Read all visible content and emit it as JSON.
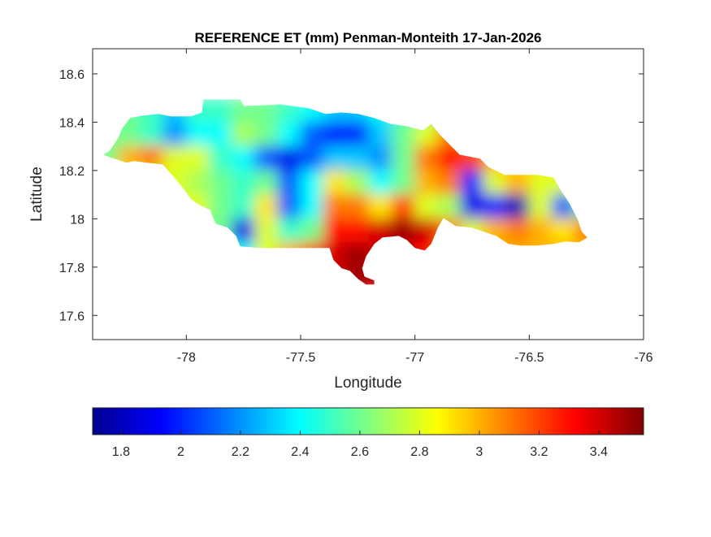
{
  "chart_data": {
    "type": "heatmap",
    "title": "REFERENCE ET (mm) Penman-Monteith 17-Jan-2026",
    "xlabel": "Longitude",
    "ylabel": "Latitude",
    "xlim": [
      -78.41,
      -76.0
    ],
    "ylim": [
      17.5,
      18.704
    ],
    "xticks": [
      -78,
      -77.5,
      -77,
      -76.5,
      -76
    ],
    "xtick_labels": [
      "-78",
      "-77.5",
      "-77",
      "-76.5",
      "-76"
    ],
    "yticks": [
      17.6,
      17.8,
      18,
      18.2,
      18.4,
      18.6
    ],
    "ytick_labels": [
      "17.6",
      "17.8",
      "18",
      "18.2",
      "18.4",
      "18.6"
    ],
    "grid": false,
    "colormap": "jet",
    "clim": [
      1.705,
      3.55
    ],
    "colorbar": {
      "location": "bottom",
      "ticks": [
        1.8,
        2,
        2.2,
        2.4,
        2.6,
        2.8,
        3,
        3.2,
        3.4
      ],
      "tick_labels": [
        "1.8",
        "2",
        "2.2",
        "2.4",
        "2.6",
        "2.8",
        "3",
        "3.2",
        "3.4"
      ]
    },
    "grid_lon": [
      -78.35,
      -78.25,
      -78.15,
      -78.05,
      -77.95,
      -77.85,
      -77.75,
      -77.65,
      -77.55,
      -77.45,
      -77.35,
      -77.25,
      -77.15,
      -77.05,
      -76.95,
      -76.85,
      -76.75,
      -76.65,
      -76.55,
      -76.45,
      -76.35,
      -76.25
    ],
    "grid_lat": [
      18.45,
      18.35,
      18.25,
      18.15,
      18.05,
      17.95,
      17.85,
      17.75
    ],
    "values": [
      [
        2.6,
        2.6,
        2.5,
        2.3,
        2.5,
        2.5,
        2.6,
        2.6,
        2.5,
        2.4,
        2.3,
        2.3,
        2.4,
        2.5,
        2.6,
        2.7,
        2.8,
        2.8,
        2.8,
        2.8,
        2.8,
        2.8
      ],
      [
        2.6,
        2.6,
        2.5,
        2.2,
        2.4,
        2.4,
        2.7,
        2.6,
        2.4,
        2.1,
        1.95,
        2.0,
        2.3,
        2.6,
        2.8,
        3.1,
        3.1,
        3.0,
        2.9,
        2.8,
        2.8,
        2.8
      ],
      [
        2.6,
        3.0,
        3.1,
        2.8,
        2.8,
        2.5,
        2.4,
        2.1,
        1.9,
        2.1,
        2.3,
        2.3,
        2.2,
        2.6,
        3.1,
        3.3,
        3.2,
        3.0,
        2.9,
        2.9,
        2.9,
        2.9
      ],
      [
        2.8,
        2.8,
        2.8,
        2.8,
        2.7,
        2.6,
        2.5,
        2.6,
        2.1,
        2.4,
        2.9,
        2.7,
        2.4,
        2.6,
        3.0,
        3.1,
        2.0,
        2.8,
        3.0,
        2.8,
        2.8,
        2.8
      ],
      [
        2.8,
        2.8,
        2.8,
        2.8,
        2.8,
        2.6,
        2.5,
        2.9,
        2.1,
        2.4,
        3.1,
        3.1,
        2.9,
        3.2,
        2.8,
        2.7,
        1.9,
        2.0,
        1.8,
        2.8,
        2.1,
        2.6
      ],
      [
        2.6,
        2.6,
        2.6,
        2.6,
        2.6,
        2.6,
        1.9,
        2.8,
        2.5,
        2.6,
        3.3,
        3.3,
        3.4,
        3.5,
        3.4,
        3.1,
        2.8,
        3.0,
        3.1,
        3.0,
        2.9,
        3.1
      ],
      [
        2.6,
        2.6,
        2.6,
        2.6,
        2.6,
        2.6,
        2.4,
        2.8,
        3.0,
        3.2,
        3.4,
        3.5,
        3.4,
        3.4,
        3.3,
        3.1,
        3.0,
        3.0,
        3.0,
        3.0,
        3.0,
        3.0
      ],
      [
        2.8,
        2.8,
        2.8,
        2.8,
        2.8,
        2.8,
        2.8,
        3.0,
        3.2,
        3.3,
        3.4,
        3.5,
        3.4,
        3.4,
        3.3,
        3.1,
        3.0,
        3.0,
        3.0,
        3.0,
        3.0,
        3.0
      ]
    ],
    "boundary_lonlat": [
      [
        -78.363,
        18.265
      ],
      [
        -78.335,
        18.282
      ],
      [
        -78.299,
        18.333
      ],
      [
        -78.281,
        18.373
      ],
      [
        -78.246,
        18.417
      ],
      [
        -78.192,
        18.427
      ],
      [
        -78.121,
        18.434
      ],
      [
        -78.068,
        18.424
      ],
      [
        -77.979,
        18.424
      ],
      [
        -77.932,
        18.44
      ],
      [
        -77.925,
        18.494
      ],
      [
        -77.765,
        18.494
      ],
      [
        -77.747,
        18.467
      ],
      [
        -77.587,
        18.474
      ],
      [
        -77.463,
        18.457
      ],
      [
        -77.391,
        18.434
      ],
      [
        -77.32,
        18.44
      ],
      [
        -77.249,
        18.434
      ],
      [
        -77.178,
        18.417
      ],
      [
        -77.107,
        18.393
      ],
      [
        -77.036,
        18.383
      ],
      [
        -76.964,
        18.366
      ],
      [
        -76.929,
        18.393
      ],
      [
        -76.893,
        18.35
      ],
      [
        -76.84,
        18.299
      ],
      [
        -76.804,
        18.265
      ],
      [
        -76.715,
        18.249
      ],
      [
        -76.68,
        18.215
      ],
      [
        -76.609,
        18.182
      ],
      [
        -76.466,
        18.182
      ],
      [
        -76.395,
        18.171
      ],
      [
        -76.359,
        18.114
      ],
      [
        -76.324,
        18.064
      ],
      [
        -76.288,
        17.997
      ],
      [
        -76.27,
        17.946
      ],
      [
        -76.246,
        17.923
      ],
      [
        -76.281,
        17.903
      ],
      [
        -76.342,
        17.906
      ],
      [
        -76.395,
        17.896
      ],
      [
        -76.466,
        17.889
      ],
      [
        -76.537,
        17.889
      ],
      [
        -76.591,
        17.896
      ],
      [
        -76.644,
        17.929
      ],
      [
        -76.698,
        17.946
      ],
      [
        -76.751,
        17.963
      ],
      [
        -76.822,
        17.97
      ],
      [
        -76.875,
        18.003
      ],
      [
        -76.9,
        17.963
      ],
      [
        -76.929,
        17.896
      ],
      [
        -76.957,
        17.869
      ],
      [
        -77.0,
        17.879
      ],
      [
        -77.036,
        17.913
      ],
      [
        -77.071,
        17.929
      ],
      [
        -77.142,
        17.923
      ],
      [
        -77.178,
        17.896
      ],
      [
        -77.214,
        17.845
      ],
      [
        -77.231,
        17.795
      ],
      [
        -77.221,
        17.761
      ],
      [
        -77.178,
        17.745
      ],
      [
        -77.178,
        17.728
      ],
      [
        -77.214,
        17.728
      ],
      [
        -77.249,
        17.751
      ],
      [
        -77.285,
        17.785
      ],
      [
        -77.32,
        17.795
      ],
      [
        -77.356,
        17.829
      ],
      [
        -77.374,
        17.879
      ],
      [
        -77.463,
        17.879
      ],
      [
        -77.569,
        17.879
      ],
      [
        -77.676,
        17.879
      ],
      [
        -77.765,
        17.886
      ],
      [
        -77.783,
        17.929
      ],
      [
        -77.819,
        17.963
      ],
      [
        -77.872,
        17.98
      ],
      [
        -77.897,
        18.037
      ],
      [
        -77.943,
        18.057
      ],
      [
        -77.979,
        18.081
      ],
      [
        -78.004,
        18.114
      ],
      [
        -78.032,
        18.148
      ],
      [
        -78.103,
        18.225
      ],
      [
        -78.174,
        18.232
      ],
      [
        -78.228,
        18.239
      ],
      [
        -78.263,
        18.232
      ],
      [
        -78.317,
        18.249
      ]
    ],
    "colors": {
      "axis": "#262626",
      "background": "#ffffff"
    }
  }
}
